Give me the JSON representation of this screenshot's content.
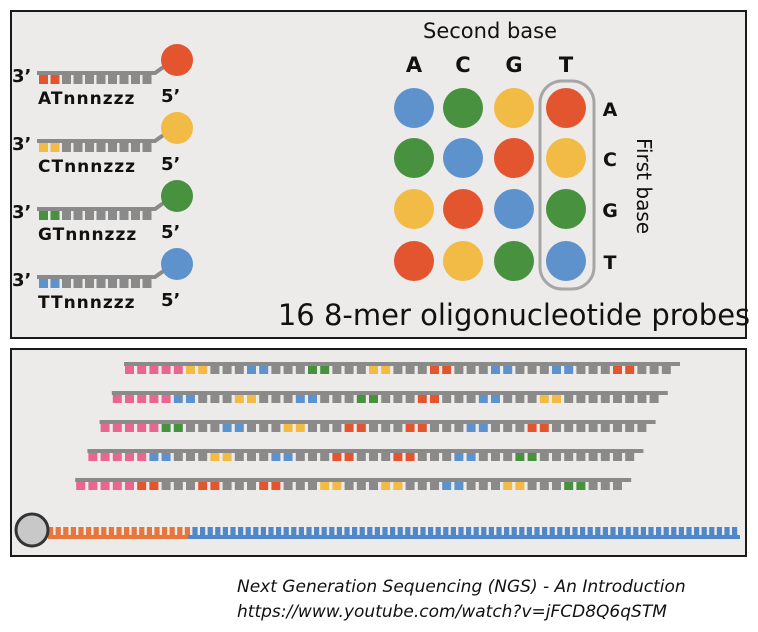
{
  "colors": {
    "A": "#e2552f",
    "C": "#f1bb46",
    "G": "#47913f",
    "T": "#5d92cd",
    "strand": "#8a8a8a",
    "pink": "#e8668f",
    "orange": "#e8763a",
    "blue_template": "#4f87c9",
    "adapter_circle": "#c8c8c8"
  },
  "top_panel": {
    "second_base_title": "Second base",
    "second_base_labels": [
      "A",
      "C",
      "G",
      "T"
    ],
    "first_base_title": "First base",
    "first_base_labels": [
      "A",
      "C",
      "G",
      "T"
    ],
    "probes_caption": "16 8-mer oligonucleotide probes",
    "grid_colors": [
      [
        "T",
        "G",
        "C",
        "A"
      ],
      [
        "G",
        "T",
        "A",
        "C"
      ],
      [
        "C",
        "A",
        "T",
        "G"
      ],
      [
        "A",
        "C",
        "G",
        "T"
      ]
    ],
    "left_probes": [
      {
        "three_prime": "3’",
        "five_prime": "5’",
        "sequence": "ATnnnzzz",
        "dinucleotide": [
          "A",
          "A"
        ],
        "dye": "A"
      },
      {
        "three_prime": "3’",
        "five_prime": "5’",
        "sequence": "CTnnnzzz",
        "dinucleotide": [
          "C",
          "C"
        ],
        "dye": "C"
      },
      {
        "three_prime": "3’",
        "five_prime": "5’",
        "sequence": "GTnnnzzz",
        "dinucleotide": [
          "G",
          "G"
        ],
        "dye": "G"
      },
      {
        "three_prime": "3’",
        "five_prime": "5’",
        "sequence": "TTnnnzzz",
        "dinucleotide": [
          "T",
          "T"
        ],
        "dye": "T"
      }
    ]
  },
  "bottom_panel": {
    "ligation_rounds": [
      [
        "C",
        "T",
        "G",
        "C",
        "A",
        "T",
        "T",
        "A"
      ],
      [
        "T",
        "C",
        "T",
        "G",
        "A",
        "T",
        "C"
      ],
      [
        "G",
        "T",
        "C",
        "A",
        "A",
        "T",
        "A"
      ],
      [
        "T",
        "C",
        "T",
        "A",
        "A",
        "T",
        "G"
      ],
      [
        "A",
        "A",
        "A",
        "C",
        "C",
        "T",
        "C",
        "G"
      ]
    ]
  },
  "caption": {
    "line1": "Next Generation Sequencing (NGS) - An Introduction",
    "line2": "https://www.youtube.com/watch?v=jFCD8Q6qSTM"
  }
}
